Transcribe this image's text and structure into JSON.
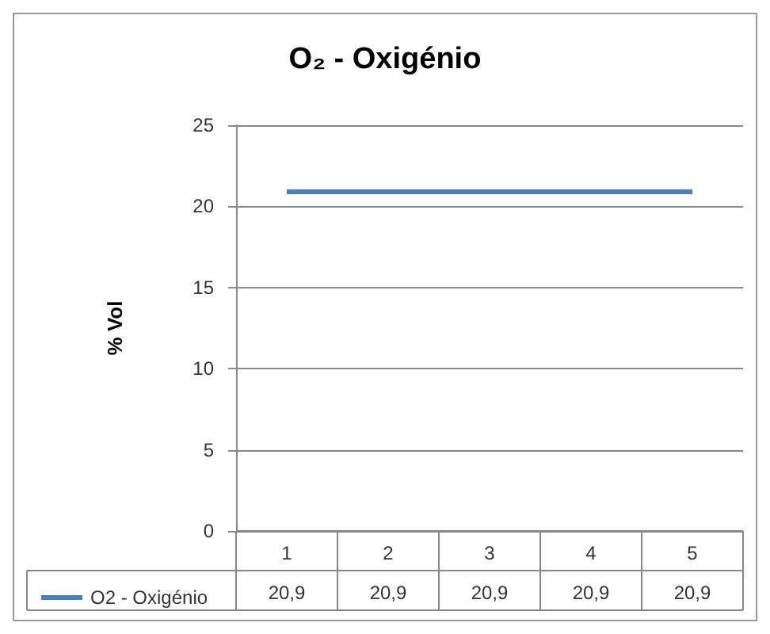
{
  "chart_data": {
    "type": "line",
    "title": "O₂ - Oxigénio",
    "ylabel": "% Vol",
    "categories": [
      "1",
      "2",
      "3",
      "4",
      "5"
    ],
    "series": [
      {
        "name": "O2 - Oxigénio",
        "color": "#4a7ebb",
        "values": [
          20.9,
          20.9,
          20.9,
          20.9,
          20.9
        ],
        "value_labels": [
          "20,9",
          "20,9",
          "20,9",
          "20,9",
          "20,9"
        ]
      }
    ],
    "ylim": [
      0,
      25
    ],
    "yticks": [
      0,
      5,
      10,
      15,
      20,
      25
    ],
    "grid": "y",
    "legend": "bottom left",
    "marker": "none",
    "line_style": "solid"
  }
}
